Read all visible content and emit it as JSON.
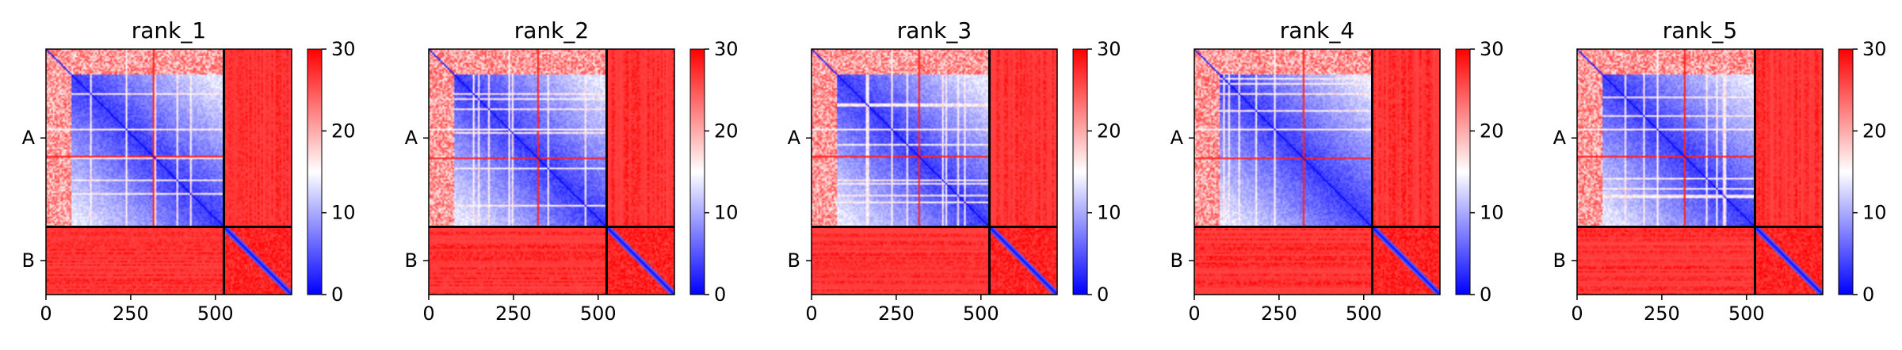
{
  "figure": {
    "background": "#ffffff"
  },
  "chart_data": [
    {
      "type": "heatmap",
      "title": "rank_1",
      "x_ticks": [
        0,
        250,
        500
      ],
      "x_range": [
        0,
        725
      ],
      "y_range": [
        0,
        725
      ],
      "chain_boundary": 525,
      "chains": [
        {
          "label": "A",
          "start": 0,
          "end": 525
        },
        {
          "label": "B",
          "start": 525,
          "end": 725
        }
      ],
      "colorbar": {
        "min": 0,
        "max": 30,
        "ticks": [
          0,
          10,
          20,
          30
        ],
        "colormap": "bwr"
      },
      "grid": false
    },
    {
      "type": "heatmap",
      "title": "rank_2",
      "x_ticks": [
        0,
        250,
        500
      ],
      "x_range": [
        0,
        725
      ],
      "y_range": [
        0,
        725
      ],
      "chain_boundary": 525,
      "chains": [
        {
          "label": "A",
          "start": 0,
          "end": 525
        },
        {
          "label": "B",
          "start": 525,
          "end": 725
        }
      ],
      "colorbar": {
        "min": 0,
        "max": 30,
        "ticks": [
          0,
          10,
          20,
          30
        ],
        "colormap": "bwr"
      },
      "grid": false
    },
    {
      "type": "heatmap",
      "title": "rank_3",
      "x_ticks": [
        0,
        250,
        500
      ],
      "x_range": [
        0,
        725
      ],
      "y_range": [
        0,
        725
      ],
      "chain_boundary": 525,
      "chains": [
        {
          "label": "A",
          "start": 0,
          "end": 525
        },
        {
          "label": "B",
          "start": 525,
          "end": 725
        }
      ],
      "colorbar": {
        "min": 0,
        "max": 30,
        "ticks": [
          0,
          10,
          20,
          30
        ],
        "colormap": "bwr"
      },
      "grid": false
    },
    {
      "type": "heatmap",
      "title": "rank_4",
      "x_ticks": [
        0,
        250,
        500
      ],
      "x_range": [
        0,
        725
      ],
      "y_range": [
        0,
        725
      ],
      "chain_boundary": 525,
      "chains": [
        {
          "label": "A",
          "start": 0,
          "end": 525
        },
        {
          "label": "B",
          "start": 525,
          "end": 725
        }
      ],
      "colorbar": {
        "min": 0,
        "max": 30,
        "ticks": [
          0,
          10,
          20,
          30
        ],
        "colormap": "bwr"
      },
      "grid": false
    },
    {
      "type": "heatmap",
      "title": "rank_5",
      "x_ticks": [
        0,
        250,
        500
      ],
      "x_range": [
        0,
        725
      ],
      "y_range": [
        0,
        725
      ],
      "chain_boundary": 525,
      "chains": [
        {
          "label": "A",
          "start": 0,
          "end": 525
        },
        {
          "label": "B",
          "start": 525,
          "end": 725
        }
      ],
      "colorbar": {
        "min": 0,
        "max": 30,
        "ticks": [
          0,
          10,
          20,
          30
        ],
        "colormap": "bwr"
      },
      "grid": false
    }
  ]
}
